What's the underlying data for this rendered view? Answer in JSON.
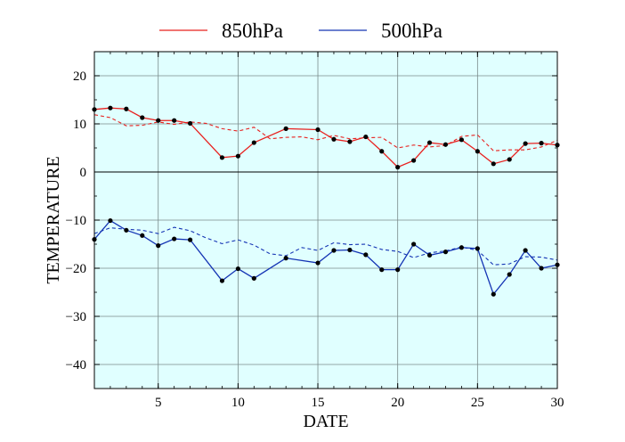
{
  "chart_data": {
    "type": "line",
    "xlabel": "DATE",
    "ylabel": "TEMPERATURE",
    "xlim": [
      1,
      30
    ],
    "ylim": [
      -45,
      25
    ],
    "x_ticks": [
      5,
      10,
      15,
      20,
      25,
      30
    ],
    "y_ticks": [
      -40,
      -30,
      -20,
      -10,
      0,
      10,
      20
    ],
    "y_tick_labels": [
      "−40",
      "−30",
      "−20",
      "−10",
      "0",
      "10",
      "20"
    ],
    "grid": true,
    "zero_line": true,
    "plot_background": "#e0ffff",
    "legend": {
      "position": "top"
    },
    "x": [
      1,
      2,
      3,
      4,
      5,
      6,
      7,
      8,
      9,
      10,
      11,
      12,
      13,
      14,
      15,
      16,
      17,
      18,
      19,
      20,
      21,
      22,
      23,
      24,
      25,
      26,
      27,
      28,
      29,
      30
    ],
    "series": [
      {
        "name": "850hPa",
        "color": "#e8201e",
        "markers": true,
        "values": [
          13.0,
          13.3,
          13.1,
          11.3,
          10.7,
          10.7,
          10.1,
          null,
          3.0,
          3.3,
          6.1,
          null,
          9.0,
          null,
          8.8,
          6.8,
          6.3,
          7.3,
          4.3,
          1.0,
          2.4,
          6.1,
          5.7,
          6.7,
          4.3,
          1.7,
          2.6,
          5.9,
          6.0,
          5.6
        ],
        "reference": [
          11.9,
          11.3,
          9.6,
          9.7,
          10.4,
          9.9,
          10.4,
          10.1,
          9.0,
          8.5,
          9.3,
          6.9,
          7.2,
          7.3,
          6.7,
          7.6,
          6.9,
          7.1,
          7.2,
          5.0,
          5.6,
          5.2,
          5.5,
          7.4,
          7.7,
          4.4,
          4.6,
          4.6,
          5.2,
          6.6
        ]
      },
      {
        "name": "500hPa",
        "color": "#1434b4",
        "markers": true,
        "values": [
          -14.0,
          -10.1,
          -12.1,
          -13.2,
          -15.3,
          -13.9,
          -14.1,
          null,
          -22.6,
          -20.1,
          -22.1,
          null,
          -17.9,
          null,
          -18.9,
          -16.3,
          -16.2,
          -17.2,
          -20.3,
          -20.3,
          -15.0,
          -17.3,
          -16.6,
          -15.7,
          -15.9,
          -25.4,
          -21.3,
          -16.3,
          -20.0,
          -19.3
        ],
        "reference": [
          -12.8,
          -11.6,
          -11.9,
          -12.1,
          -12.8,
          -11.5,
          -12.2,
          -13.7,
          -14.9,
          -14.1,
          -15.2,
          -17.0,
          -17.4,
          -15.7,
          -16.3,
          -14.7,
          -15.1,
          -15.0,
          -16.1,
          -16.5,
          -17.8,
          -16.8,
          -16.4,
          -15.6,
          -16.3,
          -19.3,
          -19.1,
          -17.6,
          -17.7,
          -18.3
        ]
      }
    ]
  }
}
